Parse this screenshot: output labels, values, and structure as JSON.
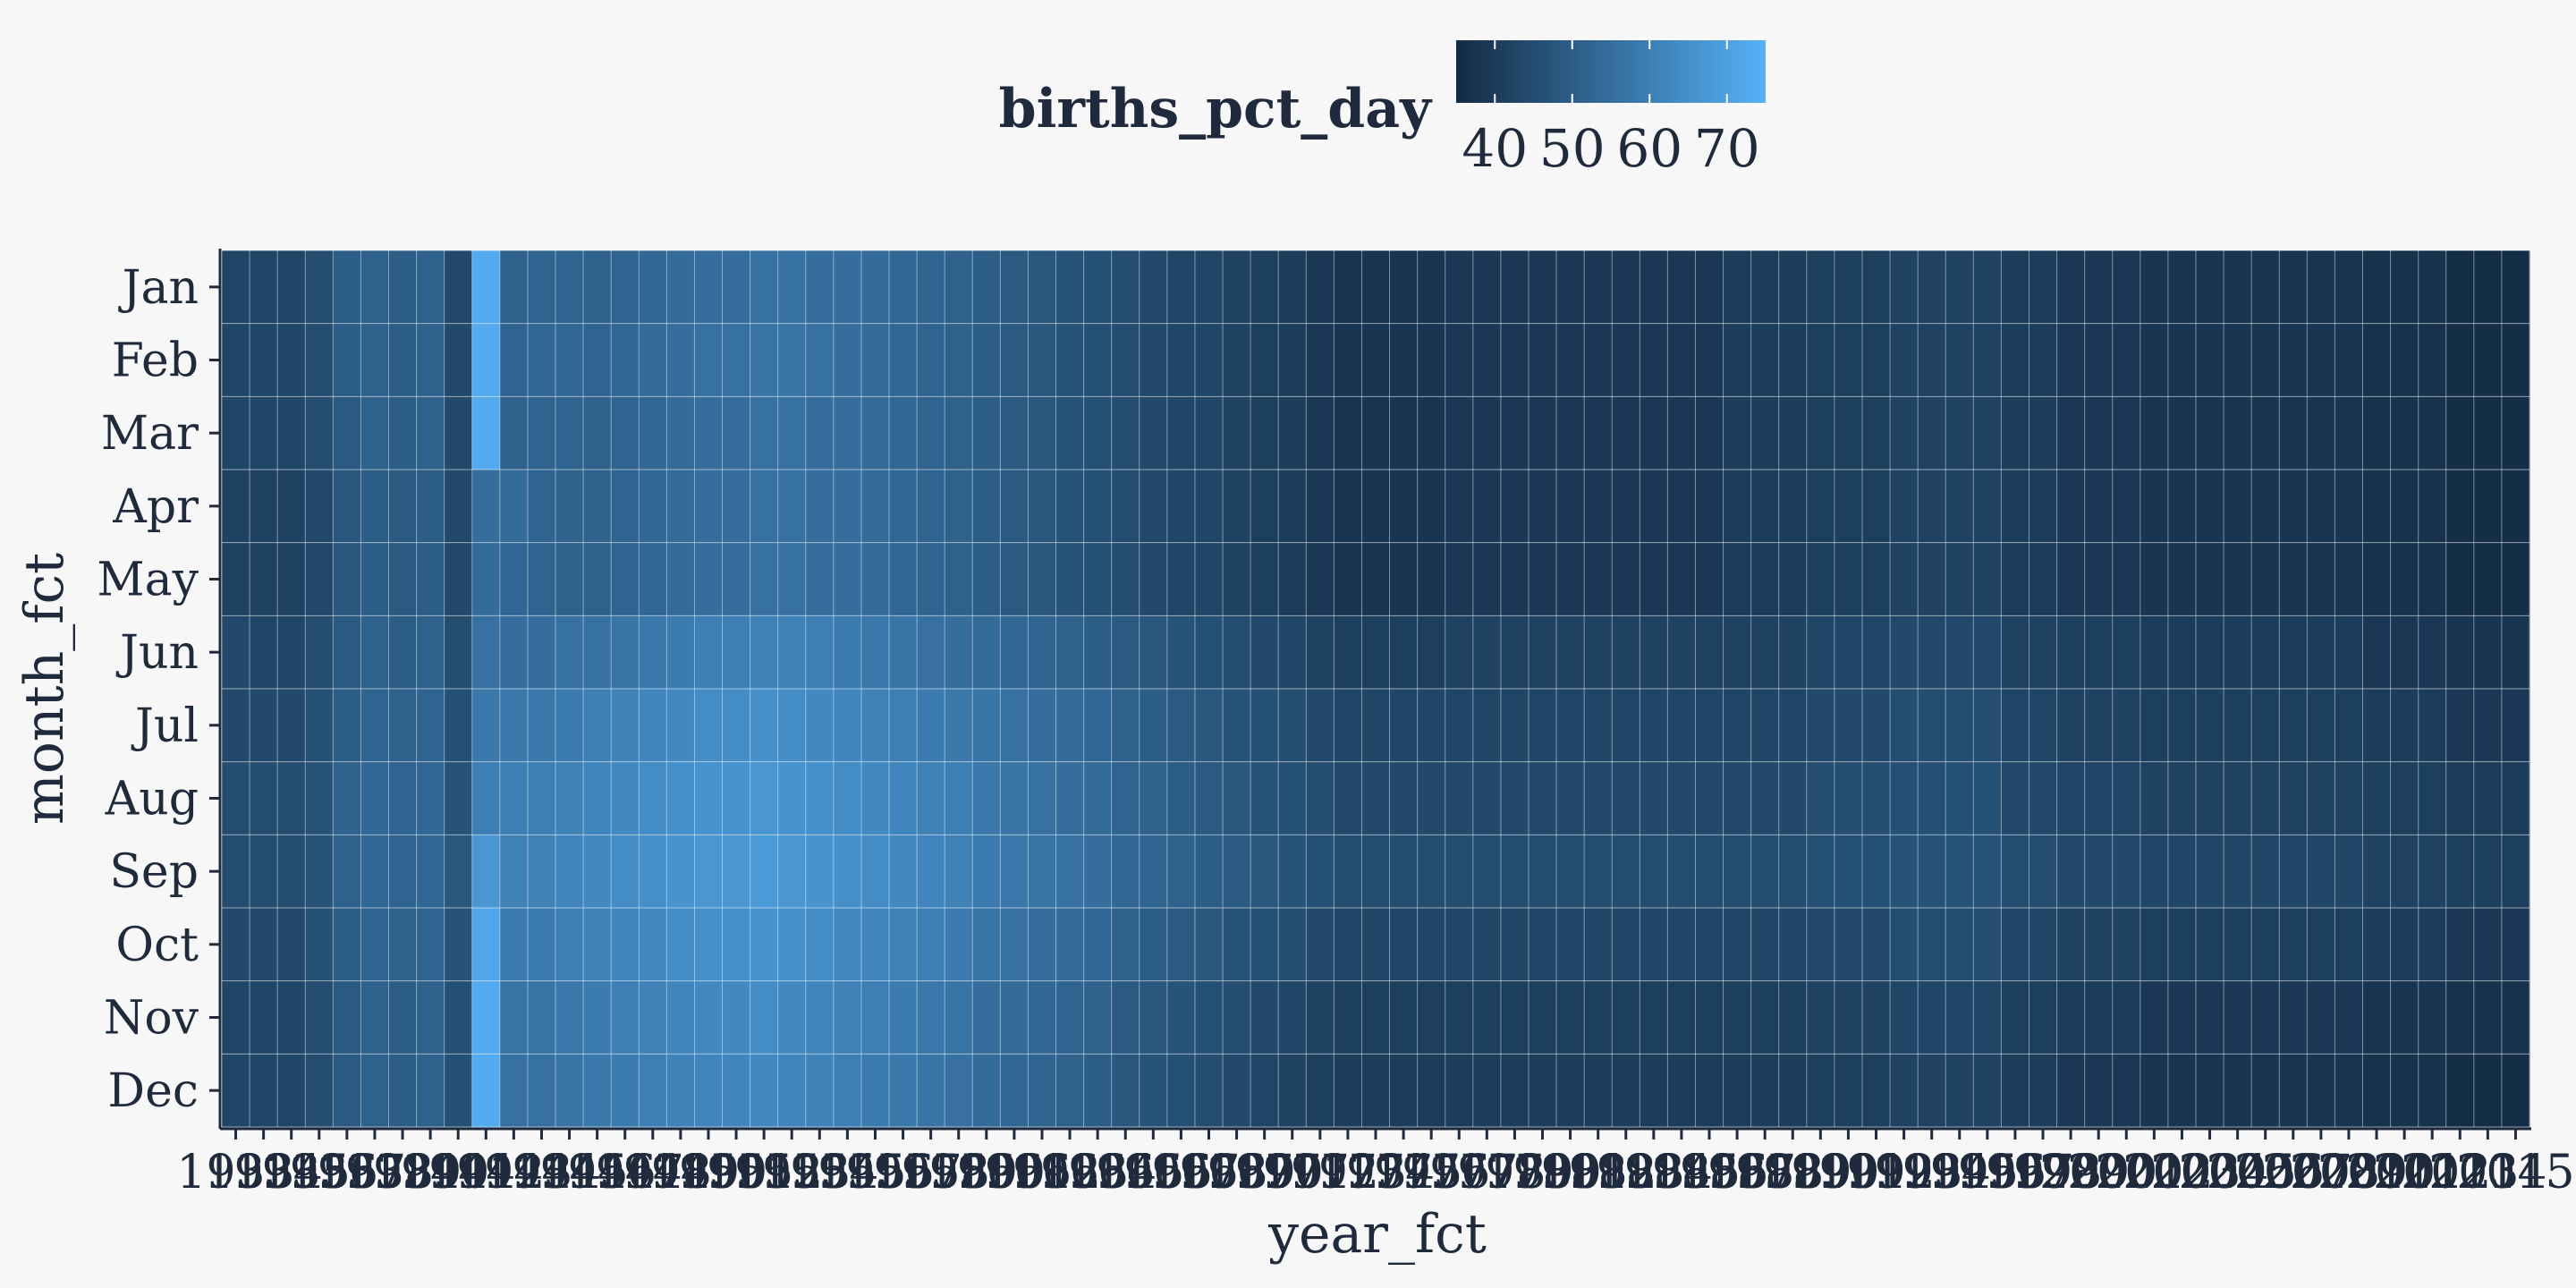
{
  "chart_data": {
    "type": "heatmap",
    "xlabel": "year_fct",
    "ylabel": "month_fct",
    "legend": {
      "title": "births_pct_day",
      "ticks": [
        40,
        50,
        60,
        70
      ],
      "range": [
        35,
        75
      ],
      "low_color": "#132b43",
      "high_color": "#56b1f7",
      "placement": "top"
    },
    "months": [
      "Jan",
      "Feb",
      "Mar",
      "Apr",
      "May",
      "Jun",
      "Jul",
      "Aug",
      "Sep",
      "Oct",
      "Nov",
      "Dec"
    ],
    "years": [
      1933,
      1934,
      1935,
      1936,
      1937,
      1938,
      1939,
      1940,
      1941,
      1942,
      1943,
      1944,
      1945,
      1946,
      1947,
      1948,
      1949,
      1950,
      1951,
      1952,
      1953,
      1954,
      1955,
      1956,
      1957,
      1958,
      1959,
      1960,
      1961,
      1962,
      1963,
      1964,
      1965,
      1966,
      1967,
      1968,
      1969,
      1970,
      1971,
      1972,
      1973,
      1974,
      1975,
      1976,
      1977,
      1978,
      1979,
      1980,
      1981,
      1982,
      1983,
      1984,
      1985,
      1986,
      1987,
      1988,
      1989,
      1990,
      1991,
      1992,
      1993,
      1994,
      1995,
      1996,
      1997,
      1998,
      1999,
      2000,
      2001,
      2002,
      2003,
      2004,
      2005,
      2006,
      2007,
      2008,
      2009,
      2010,
      2011,
      2012,
      2013,
      2014,
      2015
    ],
    "year_base_values": [
      44,
      43,
      43,
      44,
      47,
      52,
      50,
      51,
      46,
      74,
      57,
      56,
      56,
      55,
      56,
      57,
      58,
      59,
      59,
      60,
      60,
      59,
      58,
      57,
      56,
      55,
      54,
      53,
      52,
      51,
      50,
      49,
      48,
      47,
      46,
      45,
      44,
      43,
      42,
      41,
      40,
      40,
      40,
      40,
      41,
      41,
      41,
      41,
      41,
      41,
      41,
      41,
      41,
      41,
      41,
      41,
      41,
      42,
      42,
      42,
      43,
      43,
      43,
      43,
      41,
      41,
      40,
      40,
      40,
      39,
      39,
      39,
      39,
      39,
      39,
      39,
      39,
      38,
      38,
      38,
      37,
      37,
      37
    ],
    "month_values": [
      [
        43,
        43,
        43,
        45,
        50,
        51,
        50,
        51,
        44,
        73,
        51,
        52,
        52,
        51,
        52,
        53,
        54,
        55,
        55,
        56,
        56,
        55,
        55,
        54,
        53,
        52,
        51,
        50,
        49,
        48,
        47,
        46,
        45,
        44,
        43,
        43,
        42,
        41,
        40,
        39,
        38,
        38,
        38,
        38,
        39,
        39,
        39,
        39,
        39,
        39,
        39,
        39,
        39,
        39,
        40,
        40,
        40,
        41,
        41,
        41,
        42,
        42,
        42,
        42,
        40,
        40,
        39,
        39,
        39,
        38,
        38,
        38,
        38,
        38,
        38,
        38,
        38,
        37,
        37,
        37,
        36,
        36,
        36
      ],
      [
        43,
        43,
        43,
        45,
        50,
        51,
        50,
        51,
        44,
        73,
        52,
        53,
        53,
        52,
        53,
        54,
        55,
        56,
        56,
        57,
        57,
        56,
        55,
        54,
        53,
        52,
        51,
        50,
        49,
        48,
        47,
        46,
        45,
        44,
        43,
        43,
        42,
        41,
        40,
        39,
        38,
        38,
        38,
        38,
        39,
        39,
        39,
        39,
        39,
        39,
        39,
        39,
        39,
        39,
        40,
        40,
        40,
        41,
        41,
        41,
        42,
        42,
        42,
        42,
        40,
        40,
        39,
        39,
        39,
        38,
        38,
        38,
        38,
        38,
        38,
        38,
        38,
        37,
        37,
        37,
        36,
        36,
        36
      ],
      [
        43,
        43,
        43,
        45,
        49,
        51,
        50,
        51,
        44,
        73,
        51,
        52,
        52,
        51,
        52,
        53,
        54,
        55,
        55,
        56,
        56,
        55,
        55,
        54,
        53,
        52,
        51,
        50,
        49,
        48,
        47,
        46,
        45,
        44,
        43,
        43,
        42,
        41,
        40,
        39,
        38,
        38,
        38,
        38,
        39,
        39,
        39,
        39,
        39,
        39,
        39,
        39,
        39,
        39,
        40,
        40,
        40,
        41,
        41,
        41,
        42,
        42,
        42,
        42,
        40,
        40,
        39,
        39,
        39,
        38,
        38,
        38,
        38,
        38,
        38,
        38,
        38,
        37,
        37,
        37,
        36,
        36,
        36
      ],
      [
        42,
        42,
        42,
        44,
        48,
        50,
        49,
        50,
        44,
        55,
        54,
        52,
        51,
        51,
        52,
        53,
        54,
        55,
        55,
        56,
        56,
        55,
        55,
        54,
        53,
        52,
        51,
        50,
        49,
        48,
        47,
        46,
        45,
        44,
        43,
        43,
        42,
        41,
        40,
        39,
        38,
        38,
        38,
        38,
        39,
        39,
        39,
        39,
        39,
        39,
        39,
        39,
        39,
        39,
        40,
        40,
        40,
        41,
        41,
        41,
        42,
        42,
        42,
        42,
        40,
        40,
        39,
        39,
        39,
        38,
        38,
        38,
        38,
        38,
        38,
        38,
        38,
        37,
        37,
        37,
        36,
        36,
        36
      ],
      [
        42,
        42,
        42,
        44,
        48,
        50,
        49,
        50,
        44,
        54,
        53,
        52,
        51,
        51,
        52,
        53,
        54,
        55,
        55,
        56,
        56,
        55,
        55,
        54,
        53,
        52,
        51,
        50,
        49,
        48,
        47,
        46,
        45,
        44,
        43,
        43,
        42,
        41,
        40,
        39,
        38,
        38,
        38,
        38,
        39,
        39,
        39,
        39,
        39,
        39,
        39,
        39,
        39,
        39,
        40,
        40,
        40,
        41,
        41,
        41,
        42,
        42,
        42,
        42,
        40,
        40,
        39,
        39,
        39,
        38,
        38,
        38,
        38,
        38,
        38,
        38,
        38,
        37,
        37,
        37,
        36,
        36,
        36
      ],
      [
        44,
        43,
        43,
        45,
        49,
        51,
        50,
        51,
        45,
        56,
        55,
        55,
        56,
        56,
        57,
        58,
        59,
        60,
        60,
        61,
        61,
        60,
        59,
        58,
        57,
        56,
        55,
        54,
        53,
        52,
        51,
        50,
        49,
        48,
        47,
        46,
        45,
        44,
        43,
        42,
        41,
        41,
        41,
        41,
        42,
        42,
        42,
        42,
        42,
        42,
        42,
        42,
        42,
        42,
        42,
        42,
        42,
        43,
        43,
        43,
        44,
        44,
        44,
        44,
        42,
        42,
        41,
        41,
        41,
        40,
        40,
        40,
        40,
        40,
        40,
        40,
        40,
        39,
        39,
        39,
        38,
        38,
        38
      ],
      [
        44,
        44,
        44,
        46,
        50,
        52,
        51,
        52,
        46,
        58,
        58,
        58,
        59,
        60,
        61,
        62,
        63,
        64,
        64,
        65,
        64,
        63,
        62,
        61,
        60,
        59,
        58,
        57,
        56,
        55,
        54,
        53,
        51,
        50,
        49,
        48,
        47,
        46,
        45,
        44,
        43,
        43,
        43,
        43,
        43,
        43,
        43,
        43,
        43,
        43,
        43,
        43,
        43,
        43,
        43,
        43,
        43,
        44,
        44,
        44,
        45,
        45,
        45,
        45,
        43,
        43,
        42,
        42,
        42,
        41,
        41,
        41,
        41,
        41,
        41,
        41,
        41,
        40,
        40,
        40,
        39,
        39,
        39
      ],
      [
        45,
        45,
        45,
        47,
        51,
        53,
        52,
        53,
        47,
        60,
        60,
        60,
        61,
        62,
        63,
        64,
        65,
        66,
        66,
        67,
        66,
        65,
        64,
        63,
        62,
        61,
        60,
        58,
        57,
        56,
        55,
        54,
        52,
        51,
        50,
        49,
        48,
        47,
        46,
        45,
        44,
        44,
        44,
        44,
        44,
        44,
        44,
        44,
        44,
        44,
        44,
        44,
        44,
        44,
        44,
        44,
        44,
        45,
        45,
        45,
        46,
        46,
        46,
        46,
        44,
        44,
        43,
        43,
        43,
        42,
        42,
        42,
        42,
        42,
        42,
        42,
        42,
        41,
        41,
        41,
        40,
        40,
        40
      ],
      [
        45,
        45,
        45,
        47,
        51,
        53,
        52,
        53,
        48,
        67,
        61,
        61,
        62,
        63,
        64,
        65,
        66,
        67,
        67,
        68,
        67,
        66,
        65,
        64,
        63,
        62,
        61,
        59,
        58,
        57,
        56,
        55,
        53,
        52,
        51,
        50,
        49,
        48,
        47,
        46,
        45,
        45,
        45,
        45,
        45,
        45,
        45,
        45,
        45,
        45,
        45,
        45,
        45,
        45,
        45,
        45,
        45,
        46,
        46,
        46,
        47,
        47,
        47,
        47,
        45,
        45,
        44,
        44,
        44,
        43,
        43,
        43,
        43,
        43,
        43,
        43,
        43,
        42,
        42,
        42,
        41,
        41,
        41
      ],
      [
        44,
        44,
        44,
        46,
        50,
        52,
        51,
        52,
        47,
        72,
        59,
        59,
        60,
        61,
        62,
        63,
        64,
        65,
        65,
        66,
        65,
        64,
        63,
        62,
        61,
        60,
        59,
        57,
        56,
        55,
        54,
        53,
        51,
        50,
        49,
        48,
        47,
        46,
        45,
        44,
        43,
        43,
        43,
        43,
        43,
        43,
        43,
        43,
        43,
        43,
        43,
        43,
        43,
        43,
        43,
        43,
        43,
        44,
        44,
        44,
        45,
        45,
        45,
        45,
        43,
        43,
        42,
        42,
        42,
        41,
        41,
        41,
        41,
        41,
        41,
        41,
        41,
        40,
        40,
        40,
        39,
        39,
        39
      ],
      [
        43,
        43,
        43,
        45,
        49,
        51,
        50,
        51,
        46,
        73,
        57,
        57,
        58,
        59,
        60,
        61,
        62,
        63,
        63,
        64,
        63,
        62,
        61,
        60,
        59,
        58,
        57,
        55,
        54,
        53,
        52,
        51,
        49,
        48,
        47,
        46,
        45,
        44,
        43,
        42,
        41,
        41,
        41,
        41,
        41,
        41,
        41,
        41,
        41,
        41,
        41,
        41,
        41,
        41,
        41,
        41,
        41,
        42,
        42,
        42,
        43,
        43,
        43,
        43,
        41,
        41,
        40,
        40,
        40,
        39,
        39,
        39,
        39,
        39,
        39,
        39,
        39,
        38,
        38,
        38,
        37,
        37,
        37
      ],
      [
        43,
        43,
        43,
        45,
        49,
        51,
        50,
        51,
        46,
        73,
        56,
        56,
        57,
        58,
        59,
        60,
        61,
        62,
        62,
        63,
        62,
        61,
        60,
        59,
        58,
        57,
        56,
        54,
        53,
        52,
        51,
        50,
        48,
        47,
        46,
        45,
        44,
        43,
        42,
        41,
        40,
        40,
        40,
        40,
        40,
        40,
        40,
        40,
        40,
        40,
        40,
        40,
        40,
        40,
        40,
        40,
        40,
        41,
        41,
        41,
        42,
        42,
        42,
        42,
        40,
        40,
        39,
        39,
        39,
        38,
        38,
        38,
        38,
        38,
        38,
        38,
        38,
        37,
        37,
        37,
        36,
        36,
        36
      ]
    ],
    "year_tick_labels_visible": [
      "1933",
      "1934",
      "1935",
      "1936",
      "1937",
      "1938",
      "1939",
      "1940",
      "1941",
      "1942",
      "1943",
      "1944",
      "1945",
      "1946",
      "1947",
      "1948",
      "1949",
      "1950",
      "1951",
      "1952",
      "1953",
      "1954",
      "1955",
      "1956",
      "1957",
      "1958",
      "1959",
      "1960",
      "1961",
      "1962",
      "1963",
      "1964",
      "1965",
      "1966",
      "1967",
      "1968",
      "1969",
      "1970",
      "1971",
      "1972",
      "1973",
      "1974",
      "1975",
      "1976",
      "1977",
      "1978",
      "1979",
      "1980",
      "1981",
      "1982",
      "1983",
      "1984",
      "1985",
      "1986",
      "1987",
      "1988",
      "1989",
      "1990",
      "1991",
      "1992",
      "1993",
      "1994",
      "1995",
      "1996",
      "1997",
      "1998",
      "1999",
      "2000",
      "2001",
      "2002",
      "2003",
      "2004",
      "2005",
      "2006",
      "2007",
      "2008",
      "2009",
      "2010",
      "2011",
      "2012",
      "2013",
      "2014",
      "2015"
    ],
    "grid": true
  }
}
